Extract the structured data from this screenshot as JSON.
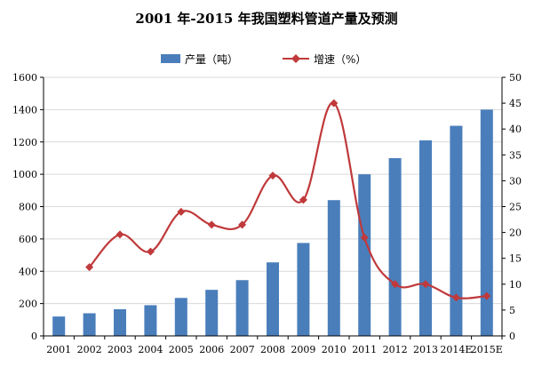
{
  "chart_data": {
    "type": "bar",
    "title": "2001 年-2015 年我国塑料管道产量及预测",
    "categories": [
      "2001",
      "2002",
      "2003",
      "2004",
      "2005",
      "2006",
      "2007",
      "2008",
      "2009",
      "2010",
      "2011",
      "2012",
      "2013",
      "2014E",
      "2015E"
    ],
    "series": [
      {
        "name": "产量（吨）",
        "type": "bar",
        "axis": "left",
        "color": "#4a7ebb",
        "values": [
          120,
          140,
          165,
          190,
          235,
          285,
          345,
          455,
          575,
          840,
          1000,
          1100,
          1210,
          1300,
          1400
        ]
      },
      {
        "name": "增速（%）",
        "type": "line",
        "axis": "right",
        "color": "#c0393b",
        "values": [
          null,
          13.3,
          19.6,
          16.3,
          24.0,
          21.5,
          21.5,
          31.0,
          26.3,
          45.0,
          19.0,
          10.0,
          10.0,
          7.4,
          7.7
        ]
      }
    ],
    "yLeft": {
      "min": 0,
      "max": 1600,
      "step": 200,
      "ticks": [
        "0",
        "200",
        "400",
        "600",
        "800",
        "1000",
        "1200",
        "1400",
        "1600"
      ]
    },
    "yRight": {
      "min": 0,
      "max": 50,
      "step": 5,
      "ticks": [
        "0",
        "5",
        "10",
        "15",
        "20",
        "25",
        "30",
        "35",
        "40",
        "45",
        "50"
      ]
    },
    "grid": true,
    "legend": "top-center"
  }
}
